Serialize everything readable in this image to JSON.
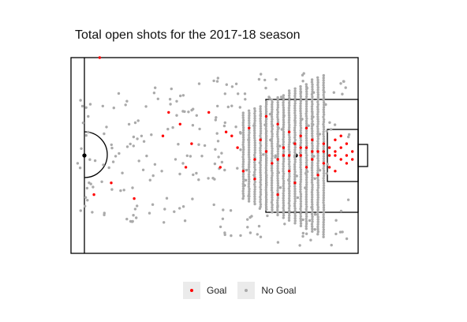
{
  "chart_data": {
    "type": "scatter",
    "title": "Total open shots for the 2017-18 season",
    "xlabel": "",
    "ylabel": "",
    "xlim": [
      50,
      100
    ],
    "ylim": [
      0,
      100
    ],
    "legend_position": "bottom",
    "series": [
      {
        "name": "Goal",
        "color": "#ff0000"
      },
      {
        "name": "No Goal",
        "color": "#aaaaaa"
      }
    ],
    "band_columns": [
      80,
      81,
      82,
      83,
      84,
      85,
      86,
      87,
      88,
      89,
      90,
      91,
      92,
      93,
      94
    ],
    "goal_points": [
      [
        55,
        100
      ],
      [
        54,
        30
      ],
      [
        57,
        36
      ],
      [
        61,
        28
      ],
      [
        67,
        72
      ],
      [
        69,
        66
      ],
      [
        71,
        56
      ],
      [
        76,
        44
      ],
      [
        77,
        62
      ],
      [
        79,
        54
      ],
      [
        81,
        64
      ],
      [
        82,
        38
      ],
      [
        83,
        58
      ],
      [
        84,
        70
      ],
      [
        85,
        46
      ],
      [
        86,
        66
      ],
      [
        86,
        30
      ],
      [
        87,
        54
      ],
      [
        87,
        50
      ],
      [
        88,
        42
      ],
      [
        88,
        62
      ],
      [
        89,
        56
      ],
      [
        89,
        36
      ],
      [
        90,
        50
      ],
      [
        90,
        60
      ],
      [
        91,
        44
      ],
      [
        91,
        54
      ],
      [
        91,
        64
      ],
      [
        92,
        48
      ],
      [
        92,
        58
      ],
      [
        93,
        52
      ],
      [
        93,
        40
      ],
      [
        94,
        56
      ],
      [
        94,
        46
      ],
      [
        95,
        50
      ],
      [
        95,
        54
      ],
      [
        95,
        44
      ],
      [
        96,
        52
      ],
      [
        96,
        58
      ],
      [
        96,
        42
      ],
      [
        97,
        48
      ],
      [
        97,
        54
      ],
      [
        97,
        60
      ],
      [
        98,
        50
      ],
      [
        98,
        46
      ],
      [
        98,
        56
      ],
      [
        99,
        52
      ],
      [
        99,
        48
      ],
      [
        96,
        50
      ],
      [
        94,
        52
      ],
      [
        92,
        52
      ],
      [
        90,
        54
      ],
      [
        88,
        50
      ],
      [
        86,
        48
      ],
      [
        84,
        52
      ],
      [
        82,
        48
      ],
      [
        80,
        42
      ],
      [
        78,
        60
      ],
      [
        74,
        72
      ],
      [
        70,
        44
      ],
      [
        66,
        60
      ]
    ]
  }
}
